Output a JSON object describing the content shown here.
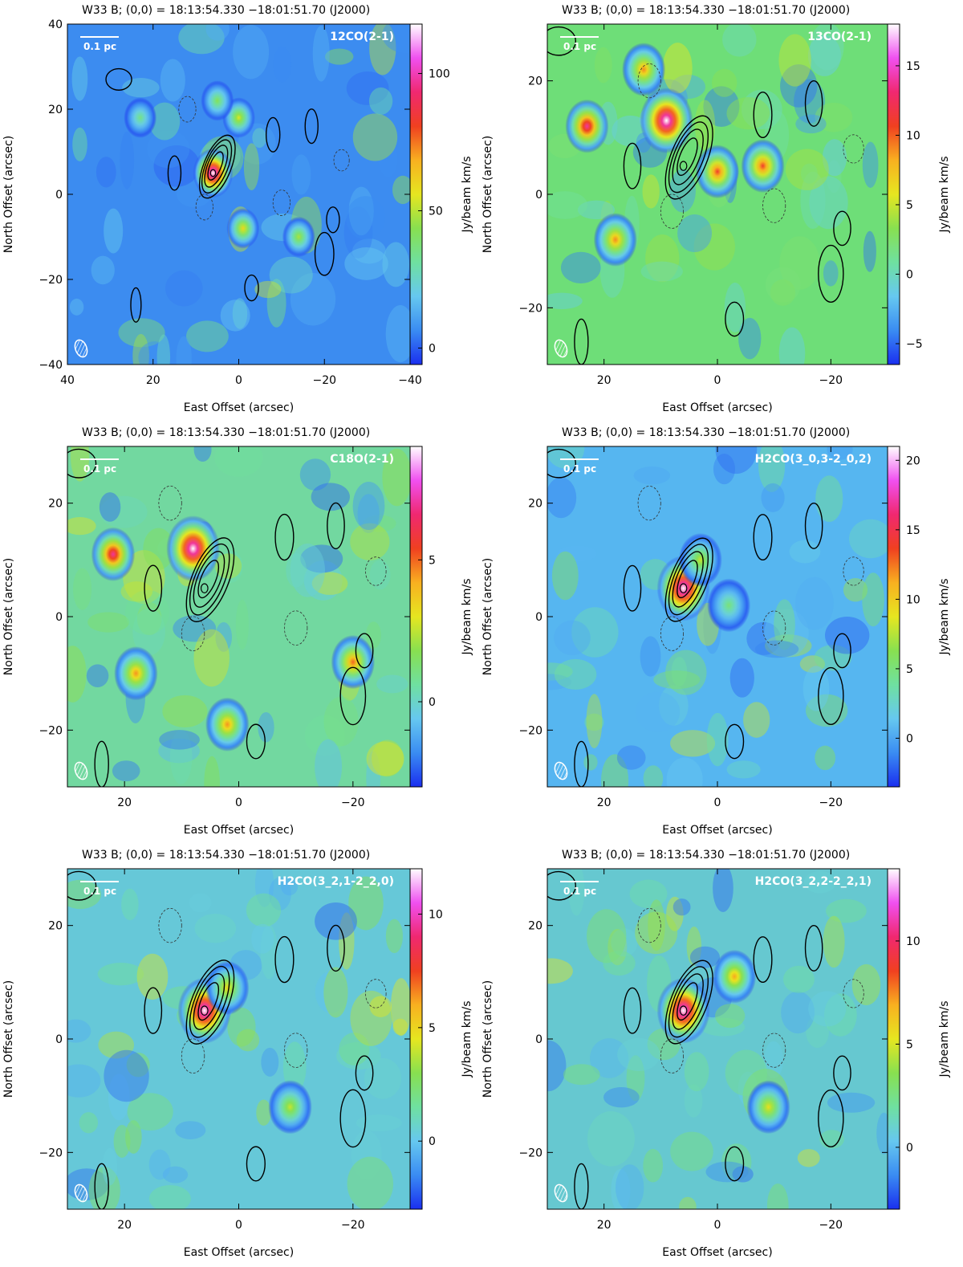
{
  "title_parts": {
    "source": "W33 B;",
    "origin_label": "(0,0) =",
    "ra": "18:13:54.330",
    "dec": "−18:01:51.70",
    "epoch": "(J2000)"
  },
  "axis_labels": {
    "x": "East Offset (arcsec)",
    "y": "North Offset (arcsec)",
    "colorbar": "Jy/beam km/s"
  },
  "scale_bar_label": "0.1 pc",
  "colors": {
    "colormap": [
      "#1a2ff0",
      "#3a8cf2",
      "#66c8f0",
      "#6fe0a0",
      "#88e050",
      "#e6e620",
      "#f8b020",
      "#f04020",
      "#f02870",
      "#f050f0",
      "#ffffff"
    ],
    "contour": "#000000",
    "overlay_text": "#ffffff"
  },
  "chart_data": [
    {
      "type": "heatmap",
      "panel": "top-left",
      "line_label": "12CO(2-1)",
      "xlabel": "East Offset (arcsec)",
      "ylabel": "North Offset (arcsec)",
      "colorbar_label": "Jy/beam km/s",
      "xlim": [
        40,
        -40
      ],
      "ylim": [
        -40,
        40
      ],
      "xticks": [
        40,
        20,
        0,
        -20,
        -40
      ],
      "yticks": [
        -40,
        -20,
        0,
        20,
        40
      ],
      "cbar_range": [
        -6,
        118
      ],
      "cbar_ticks": [
        0,
        50,
        100
      ],
      "peaks": [
        {
          "x": 6,
          "y": 5,
          "value": 118
        },
        {
          "x": -1,
          "y": -8,
          "value": 60
        },
        {
          "x": 0,
          "y": 18,
          "value": 55
        },
        {
          "x": 5,
          "y": 22,
          "value": 42
        },
        {
          "x": -14,
          "y": -10,
          "value": 48
        },
        {
          "x": 23,
          "y": 18,
          "value": 35
        }
      ]
    },
    {
      "type": "heatmap",
      "panel": "top-right",
      "line_label": "13CO(2-1)",
      "xlabel": "East Offset (arcsec)",
      "ylabel": "North Offset (arcsec)",
      "colorbar_label": "Jy/beam km/s",
      "xlim": [
        30,
        -30
      ],
      "ylim": [
        -30,
        30
      ],
      "xticks": [
        20,
        0,
        -20
      ],
      "yticks": [
        -20,
        0,
        20
      ],
      "cbar_range": [
        -6.5,
        18
      ],
      "cbar_ticks": [
        -5,
        0,
        5,
        10,
        15
      ],
      "peaks": [
        {
          "x": 9,
          "y": 13,
          "value": 18
        },
        {
          "x": 23,
          "y": 12,
          "value": 14
        },
        {
          "x": 0,
          "y": 4,
          "value": 11
        },
        {
          "x": -8,
          "y": 5,
          "value": 11
        },
        {
          "x": 18,
          "y": -8,
          "value": 9
        },
        {
          "x": 13,
          "y": 22,
          "value": 9
        }
      ]
    },
    {
      "type": "heatmap",
      "panel": "middle-left",
      "line_label": "C18O(2-1)",
      "xlabel": "East Offset (arcsec)",
      "ylabel": "North Offset (arcsec)",
      "colorbar_label": "Jy/beam km/s",
      "xlim": [
        30,
        -30
      ],
      "ylim": [
        -30,
        30
      ],
      "xticks": [
        20,
        0,
        -20
      ],
      "yticks": [
        -20,
        0,
        20
      ],
      "cbar_range": [
        -3,
        9
      ],
      "cbar_ticks": [
        0,
        5
      ],
      "peaks": [
        {
          "x": 8,
          "y": 12,
          "value": 9
        },
        {
          "x": 22,
          "y": 11,
          "value": 7
        },
        {
          "x": -20,
          "y": -8,
          "value": 5
        },
        {
          "x": 18,
          "y": -10,
          "value": 4.5
        },
        {
          "x": 2,
          "y": -19,
          "value": 4.5
        }
      ]
    },
    {
      "type": "heatmap",
      "panel": "middle-right",
      "line_label": "H2CO(3_0,3-2_0,2)",
      "xlabel": "East Offset (arcsec)",
      "ylabel": "North Offset (arcsec)",
      "colorbar_label": "Jy/beam km/s",
      "xlim": [
        30,
        -30
      ],
      "ylim": [
        -30,
        30
      ],
      "xticks": [
        20,
        0,
        -20
      ],
      "yticks": [
        -20,
        0,
        20
      ],
      "cbar_range": [
        -3.5,
        21
      ],
      "cbar_ticks": [
        0,
        5,
        10,
        15,
        20
      ],
      "peaks": [
        {
          "x": 6,
          "y": 5,
          "value": 21
        },
        {
          "x": 3,
          "y": 10,
          "value": 8
        },
        {
          "x": -2,
          "y": 2,
          "value": 5
        }
      ]
    },
    {
      "type": "heatmap",
      "panel": "bottom-left",
      "line_label": "H2CO(3_2,1-2_2,0)",
      "xlabel": "East Offset (arcsec)",
      "ylabel": "North Offset (arcsec)",
      "colorbar_label": "Jy/beam km/s",
      "xlim": [
        30,
        -30
      ],
      "ylim": [
        -30,
        30
      ],
      "xticks": [
        20,
        0,
        -20
      ],
      "yticks": [
        -20,
        0,
        20
      ],
      "cbar_range": [
        -3,
        12
      ],
      "cbar_ticks": [
        0,
        5,
        10
      ],
      "peaks": [
        {
          "x": 6,
          "y": 5,
          "value": 12
        },
        {
          "x": 2,
          "y": 9,
          "value": 5
        },
        {
          "x": -9,
          "y": -12,
          "value": 4
        }
      ]
    },
    {
      "type": "heatmap",
      "panel": "bottom-right",
      "line_label": "H2CO(3_2,2-2_2,1)",
      "xlabel": "East Offset (arcsec)",
      "ylabel": "North Offset (arcsec)",
      "colorbar_label": "Jy/beam km/s",
      "xlim": [
        30,
        -30
      ],
      "ylim": [
        -30,
        30
      ],
      "xticks": [
        20,
        0,
        -20
      ],
      "yticks": [
        -20,
        0,
        20
      ],
      "cbar_range": [
        -3,
        13.5
      ],
      "cbar_ticks": [
        0,
        5,
        10
      ],
      "peaks": [
        {
          "x": 6,
          "y": 5,
          "value": 13.5
        },
        {
          "x": -3,
          "y": 11,
          "value": 7
        },
        {
          "x": -9,
          "y": -12,
          "value": 5.5
        }
      ]
    }
  ]
}
